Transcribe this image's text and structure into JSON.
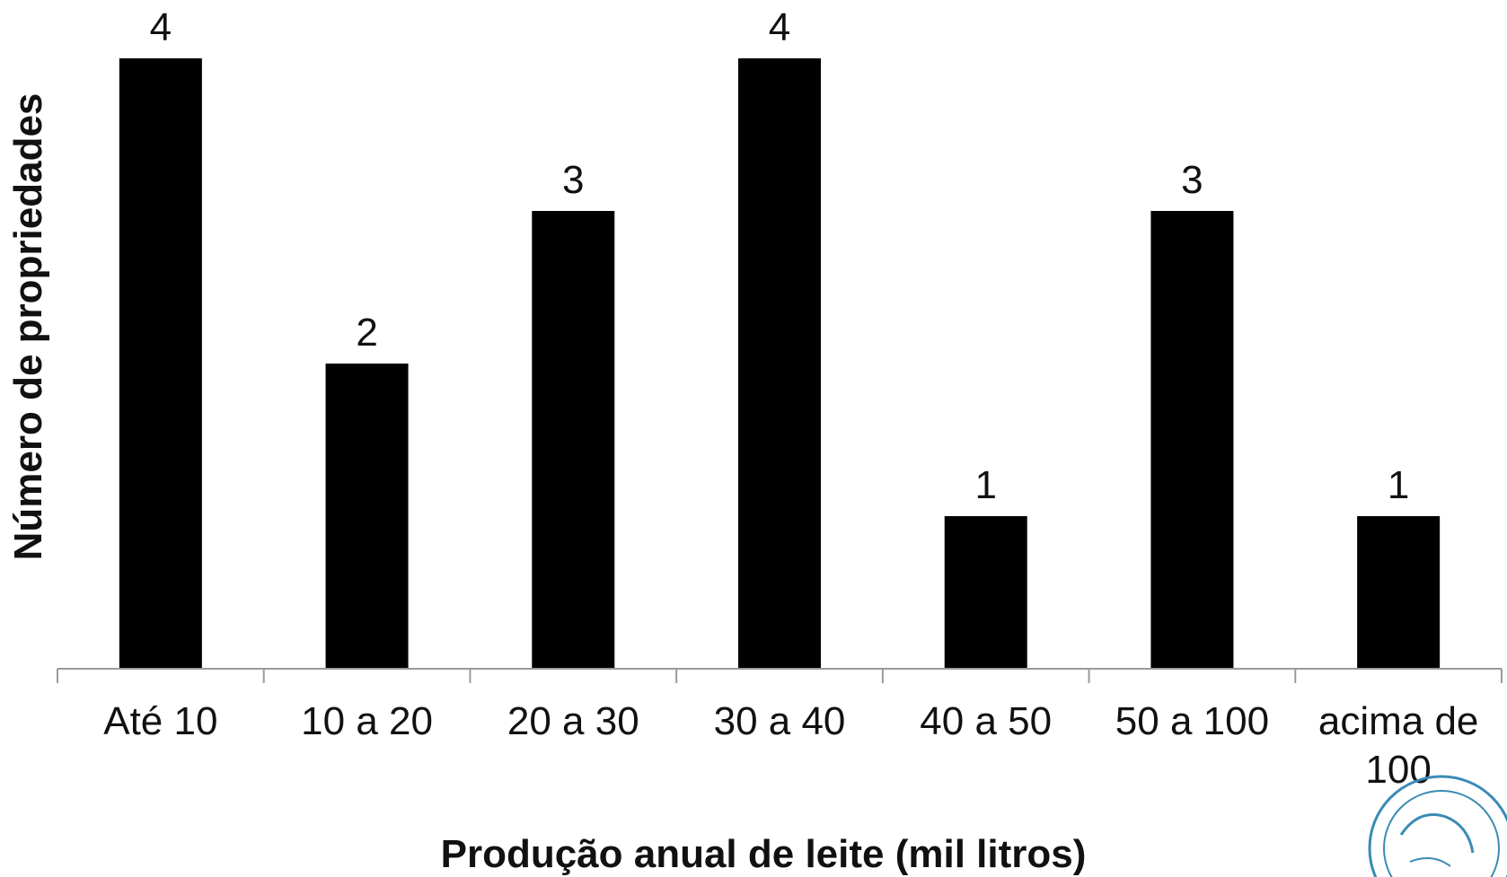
{
  "chart_data": {
    "type": "bar",
    "title": "",
    "xlabel": "Produção anual de leite (mil litros)",
    "ylabel": "Número de propriedades",
    "categories": [
      [
        "Até 10"
      ],
      [
        "10 a 20"
      ],
      [
        "20 a 30"
      ],
      [
        "30 a 40"
      ],
      [
        "40 a 50"
      ],
      [
        "50 a 100"
      ],
      [
        "acima de",
        "100"
      ]
    ],
    "values": [
      4,
      2,
      3,
      4,
      1,
      3,
      1
    ],
    "ylim": [
      0,
      4
    ],
    "grid": false,
    "legend": "none",
    "data_labels": true,
    "colors": {
      "bar": "#000000",
      "axis": "#9a9a9a",
      "text": "#111111"
    }
  },
  "watermark": {
    "icon": "seal-logo-icon",
    "color": "#3a8bb5"
  }
}
